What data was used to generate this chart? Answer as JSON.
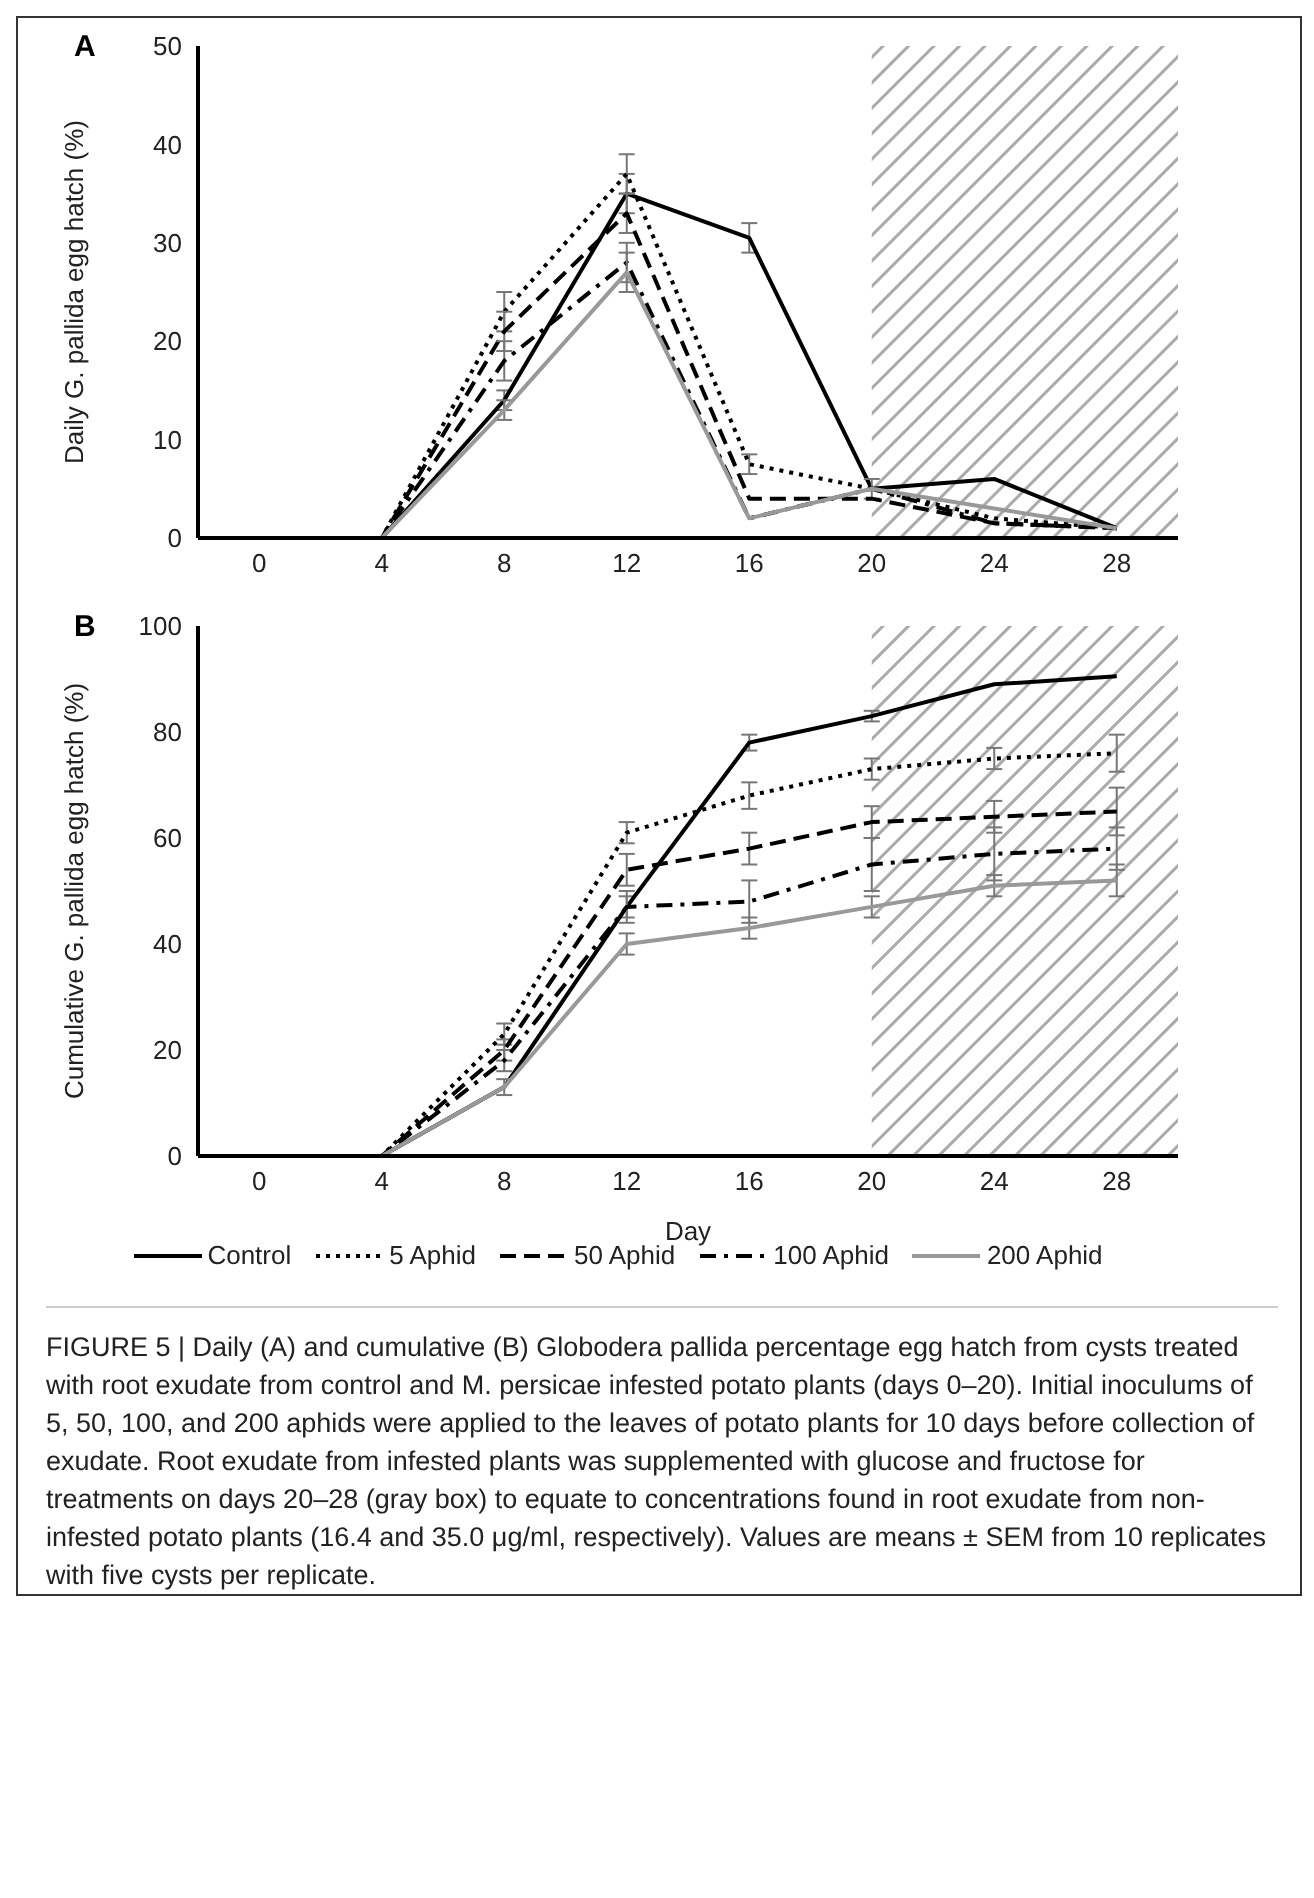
{
  "chart_data": [
    {
      "type": "line",
      "title": "A",
      "ylabel": "Daily G. pallida egg hatch (%)",
      "x": [
        0,
        4,
        8,
        12,
        16,
        20,
        24,
        28
      ],
      "xlim": [
        -2,
        30
      ],
      "xticks": [
        0,
        4,
        8,
        12,
        16,
        20,
        24,
        28
      ],
      "ylim": [
        0,
        50
      ],
      "yticks": [
        0,
        10,
        20,
        30,
        40,
        50
      ],
      "grid": false,
      "legend": false,
      "marker": "none",
      "bands": [
        {
          "axis": "x",
          "from": 20,
          "to": 30,
          "color": "#aaaaaa"
        }
      ],
      "series": [
        {
          "color": "#000000",
          "line_style": "solid",
          "values": [
            0,
            0,
            14,
            35,
            30.5,
            5,
            6,
            1
          ],
          "errors": [
            null,
            null,
            1,
            2,
            1.5,
            null,
            null,
            null
          ]
        },
        {
          "color": "#000000",
          "line_style": "dotted",
          "values": [
            0,
            0,
            23,
            37,
            7.5,
            5,
            2,
            1
          ],
          "errors": [
            null,
            null,
            2,
            2,
            1,
            1,
            null,
            null
          ]
        },
        {
          "color": "#000000",
          "line_style": "dashed",
          "values": [
            0,
            0,
            21,
            33,
            4,
            4,
            1.5,
            1
          ],
          "errors": [
            null,
            null,
            2,
            2,
            null,
            null,
            null,
            null
          ]
        },
        {
          "color": "#000000",
          "line_style": "dashdot",
          "values": [
            0,
            0,
            18,
            28,
            2,
            5,
            1.5,
            1
          ],
          "errors": [
            null,
            null,
            2,
            2,
            null,
            null,
            null,
            null
          ]
        },
        {
          "color": "#999999",
          "line_style": "solid",
          "values": [
            0,
            0,
            13,
            27,
            2,
            5,
            3,
            1
          ],
          "errors": [
            null,
            null,
            1,
            2,
            null,
            null,
            null,
            null
          ]
        }
      ]
    },
    {
      "type": "line",
      "title": "B",
      "xlabel": "Day",
      "ylabel": "Cumulative G. pallida egg hatch (%)",
      "x": [
        0,
        4,
        8,
        12,
        16,
        20,
        24,
        28
      ],
      "xlim": [
        -2,
        30
      ],
      "xticks": [
        0,
        4,
        8,
        12,
        16,
        20,
        24,
        28
      ],
      "ylim": [
        0,
        100
      ],
      "yticks": [
        0,
        20,
        40,
        60,
        80,
        100
      ],
      "grid": false,
      "legend": "bottom",
      "marker": "none",
      "bands": [
        {
          "axis": "x",
          "from": 20,
          "to": 30,
          "color": "#aaaaaa"
        }
      ],
      "annotations": [
        "FIGURE 5 | Daily (A) and cumulative (B) Globodera pallida percentage egg hatch from cysts treated with root exudate from control and M. persicae infested potato plants (days 0–20). Initial inoculums of 5, 50, 100, and 200 aphids were applied to the leaves of potato plants for 10 days before collection of exudate. Root exudate from infested plants was supplemented with glucose and fructose for treatments on days 20–28 (gray box) to equate to concentrations found in root exudate from non-infested potato plants (16.4 and 35.0 μg/ml, respectively). Values are means ± SEM from 10 replicates with five cysts per replicate."
      ],
      "series": [
        {
          "name": "Control",
          "color": "#000000",
          "line_style": "solid",
          "values": [
            0,
            0,
            13,
            47,
            78,
            83,
            89,
            90.5
          ],
          "errors": [
            null,
            null,
            null,
            2,
            1.5,
            1,
            null,
            null
          ]
        },
        {
          "name": "5 Aphid",
          "color": "#000000",
          "line_style": "dotted",
          "values": [
            0,
            0,
            23,
            61,
            68,
            73,
            75,
            76
          ],
          "errors": [
            null,
            null,
            2,
            2,
            2.5,
            2,
            2,
            3.5
          ]
        },
        {
          "name": "50 Aphid",
          "color": "#000000",
          "line_style": "dashed",
          "values": [
            0,
            0,
            20,
            54,
            58,
            63,
            64,
            65
          ],
          "errors": [
            null,
            null,
            2,
            3,
            3,
            3,
            3,
            4.5
          ]
        },
        {
          "name": "100 Aphid",
          "color": "#000000",
          "line_style": "dashdot",
          "values": [
            0,
            0,
            18,
            47,
            48,
            55,
            57,
            58
          ],
          "errors": [
            null,
            null,
            2,
            3,
            4,
            5,
            5,
            4
          ]
        },
        {
          "name": "200 Aphid",
          "color": "#999999",
          "line_style": "solid",
          "values": [
            0,
            0,
            13,
            40,
            43,
            47,
            51,
            52
          ],
          "errors": [
            null,
            null,
            1.5,
            2,
            2,
            2,
            2,
            3
          ]
        }
      ]
    }
  ]
}
